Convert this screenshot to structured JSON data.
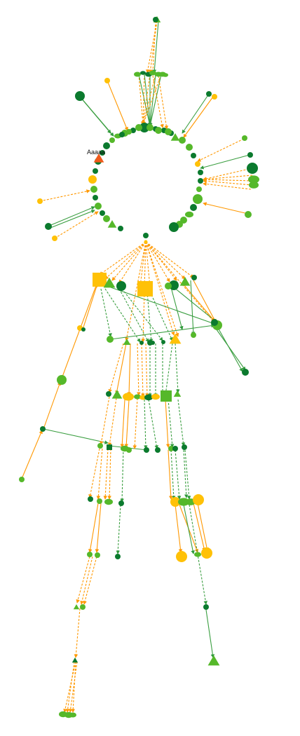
{
  "graph": {
    "highlight_label": "Aaaaa",
    "colors": {
      "dark_green": "#0b7a2e",
      "light_green": "#55b82a",
      "yellow": "#ffc107",
      "orange": "#ff9800",
      "red_orange": "#f05a1a",
      "background": "#ffffff"
    },
    "legend": []
  }
}
